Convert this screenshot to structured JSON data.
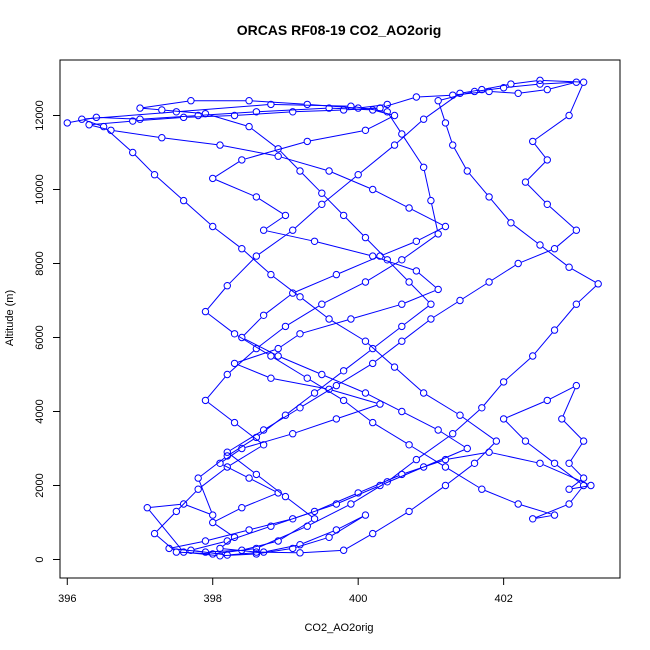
{
  "chart_data": {
    "type": "line",
    "title": "ORCAS RF08-19 CO2_AO2orig",
    "xlabel": "CO2_AO2orig",
    "ylabel": "Altitude (m)",
    "xlim": [
      395.9,
      403.6
    ],
    "ylim": [
      -500,
      13500
    ],
    "xticks": [
      396,
      398,
      400,
      402
    ],
    "yticks": [
      0,
      2000,
      4000,
      6000,
      8000,
      10000,
      12000
    ],
    "marker": "open-circle",
    "grid": false,
    "legend": "none",
    "series": [
      {
        "color": "#0000ff",
        "points": [
          [
            396.0,
            11800
          ],
          [
            396.4,
            11950
          ],
          [
            397.0,
            11900
          ],
          [
            397.8,
            12000
          ],
          [
            398.6,
            12100
          ],
          [
            399.6,
            12200
          ],
          [
            400.2,
            12150
          ],
          [
            400.5,
            12000
          ],
          [
            400.1,
            11600
          ],
          [
            399.3,
            11300
          ],
          [
            398.4,
            10800
          ],
          [
            398.0,
            10300
          ],
          [
            398.6,
            9800
          ],
          [
            399.0,
            9300
          ],
          [
            398.7,
            8900
          ],
          [
            399.4,
            8600
          ],
          [
            400.2,
            8200
          ],
          [
            400.8,
            7800
          ],
          [
            401.1,
            7300
          ],
          [
            400.6,
            6900
          ],
          [
            399.9,
            6500
          ],
          [
            399.2,
            6100
          ],
          [
            398.9,
            5700
          ],
          [
            398.3,
            5300
          ],
          [
            398.8,
            4900
          ],
          [
            399.6,
            4600
          ],
          [
            400.3,
            4200
          ],
          [
            399.7,
            3800
          ],
          [
            399.1,
            3400
          ],
          [
            398.4,
            3000
          ],
          [
            398.1,
            2600
          ],
          [
            398.5,
            2200
          ],
          [
            398.9,
            1800
          ],
          [
            398.4,
            1400
          ],
          [
            398.0,
            1000
          ],
          [
            398.3,
            600
          ],
          [
            398.1,
            300
          ],
          [
            398.6,
            200
          ],
          [
            399.2,
            180
          ],
          [
            399.8,
            250
          ],
          [
            400.2,
            700
          ],
          [
            400.7,
            1300
          ],
          [
            401.2,
            2000
          ],
          [
            401.6,
            2600
          ],
          [
            401.9,
            3200
          ],
          [
            401.4,
            3900
          ],
          [
            400.9,
            4500
          ],
          [
            400.5,
            5200
          ],
          [
            400.1,
            5900
          ],
          [
            399.6,
            6500
          ],
          [
            399.2,
            7100
          ],
          [
            398.8,
            7700
          ],
          [
            398.4,
            8400
          ],
          [
            398.0,
            9000
          ],
          [
            397.6,
            9700
          ],
          [
            397.2,
            10400
          ],
          [
            396.9,
            11000
          ],
          [
            396.5,
            11700
          ],
          [
            396.2,
            11900
          ],
          [
            397.5,
            12100
          ],
          [
            398.8,
            12300
          ],
          [
            399.9,
            12250
          ],
          [
            400.4,
            12100
          ],
          [
            400.6,
            11500
          ],
          [
            400.9,
            10600
          ],
          [
            401.0,
            9700
          ],
          [
            401.1,
            8800
          ],
          [
            400.6,
            8100
          ],
          [
            400.1,
            7500
          ],
          [
            399.5,
            6900
          ],
          [
            399.0,
            6300
          ],
          [
            398.6,
            5700
          ],
          [
            398.2,
            5000
          ],
          [
            397.9,
            4300
          ],
          [
            398.3,
            3700
          ],
          [
            398.7,
            3100
          ],
          [
            398.2,
            2500
          ],
          [
            397.8,
            1900
          ],
          [
            397.5,
            1300
          ],
          [
            397.2,
            700
          ],
          [
            397.5,
            200
          ],
          [
            398.0,
            150
          ],
          [
            398.6,
            300
          ],
          [
            399.3,
            900
          ],
          [
            399.9,
            1500
          ],
          [
            400.4,
            2100
          ],
          [
            400.8,
            2700
          ],
          [
            401.3,
            3400
          ],
          [
            401.7,
            4100
          ],
          [
            402.0,
            4800
          ],
          [
            402.4,
            5500
          ],
          [
            402.7,
            6200
          ],
          [
            403.0,
            6900
          ],
          [
            403.3,
            7450
          ],
          [
            402.9,
            7900
          ],
          [
            402.5,
            8500
          ],
          [
            402.1,
            9100
          ],
          [
            401.8,
            9800
          ],
          [
            401.5,
            10500
          ],
          [
            401.3,
            11200
          ],
          [
            401.2,
            11800
          ],
          [
            401.1,
            12400
          ],
          [
            401.6,
            12650
          ],
          [
            402.0,
            12750
          ],
          [
            402.5,
            12850
          ],
          [
            403.0,
            12900
          ],
          [
            402.6,
            12700
          ],
          [
            402.2,
            12600
          ],
          [
            401.8,
            12650
          ],
          [
            401.3,
            12550
          ],
          [
            400.8,
            12500
          ],
          [
            400.3,
            12200
          ],
          [
            399.8,
            12150
          ],
          [
            399.1,
            12100
          ],
          [
            398.3,
            12000
          ],
          [
            397.6,
            11950
          ],
          [
            396.9,
            11850
          ],
          [
            396.3,
            11750
          ],
          [
            396.6,
            11600
          ],
          [
            397.3,
            11400
          ],
          [
            398.1,
            11200
          ],
          [
            398.9,
            10900
          ],
          [
            399.6,
            10500
          ],
          [
            400.2,
            10000
          ],
          [
            400.7,
            9500
          ],
          [
            401.2,
            9000
          ],
          [
            400.8,
            8600
          ],
          [
            400.3,
            8200
          ],
          [
            399.7,
            7700
          ],
          [
            399.1,
            7200
          ],
          [
            398.7,
            6600
          ],
          [
            398.4,
            6000
          ],
          [
            398.9,
            5500
          ],
          [
            399.5,
            5000
          ],
          [
            400.1,
            4500
          ],
          [
            400.6,
            4000
          ],
          [
            401.1,
            3500
          ],
          [
            401.5,
            3000
          ],
          [
            400.9,
            2500
          ],
          [
            400.3,
            2000
          ],
          [
            399.7,
            1500
          ],
          [
            399.1,
            1100
          ],
          [
            398.5,
            800
          ],
          [
            397.9,
            500
          ],
          [
            397.4,
            300
          ],
          [
            397.9,
            200
          ],
          [
            398.4,
            250
          ],
          [
            398.9,
            500
          ],
          [
            399.4,
            1100
          ],
          [
            399.0,
            1700
          ],
          [
            398.6,
            2300
          ],
          [
            398.2,
            2900
          ],
          [
            398.7,
            3500
          ],
          [
            399.2,
            4100
          ],
          [
            399.7,
            4700
          ],
          [
            400.2,
            5300
          ],
          [
            400.6,
            5900
          ],
          [
            401.0,
            6500
          ],
          [
            401.4,
            7000
          ],
          [
            401.8,
            7500
          ],
          [
            402.2,
            8000
          ],
          [
            402.7,
            8400
          ],
          [
            403.0,
            8900
          ],
          [
            402.6,
            9600
          ],
          [
            402.3,
            10200
          ],
          [
            402.6,
            10800
          ],
          [
            402.4,
            11300
          ],
          [
            402.9,
            12000
          ],
          [
            403.1,
            12900
          ],
          [
            402.5,
            12950
          ],
          [
            402.1,
            12850
          ],
          [
            401.7,
            12700
          ],
          [
            401.4,
            12600
          ],
          [
            400.9,
            11900
          ],
          [
            400.5,
            11200
          ],
          [
            400.0,
            10400
          ],
          [
            399.5,
            9600
          ],
          [
            399.1,
            8900
          ],
          [
            398.6,
            8200
          ],
          [
            398.2,
            7400
          ],
          [
            397.9,
            6700
          ],
          [
            398.3,
            6100
          ],
          [
            398.8,
            5500
          ],
          [
            399.3,
            4900
          ],
          [
            399.8,
            4300
          ],
          [
            400.2,
            3700
          ],
          [
            400.7,
            3100
          ],
          [
            401.2,
            2500
          ],
          [
            401.7,
            1900
          ],
          [
            402.2,
            1500
          ],
          [
            402.7,
            1200
          ],
          [
            402.4,
            1100
          ],
          [
            402.9,
            1500
          ],
          [
            403.1,
            2000
          ],
          [
            402.7,
            2600
          ],
          [
            402.3,
            3200
          ],
          [
            402.0,
            3800
          ],
          [
            402.6,
            4300
          ],
          [
            403.0,
            4700
          ],
          [
            402.8,
            3800
          ],
          [
            403.1,
            3200
          ],
          [
            402.9,
            2600
          ],
          [
            403.1,
            2200
          ],
          [
            402.9,
            1900
          ],
          [
            403.2,
            2000
          ],
          [
            402.5,
            2600
          ],
          [
            401.8,
            2900
          ],
          [
            401.2,
            2700
          ],
          [
            400.6,
            2300
          ],
          [
            400.0,
            1800
          ],
          [
            399.4,
            1300
          ],
          [
            398.8,
            900
          ],
          [
            398.2,
            500
          ],
          [
            397.7,
            250
          ],
          [
            398.2,
            120
          ],
          [
            398.7,
            200
          ],
          [
            399.2,
            400
          ],
          [
            399.7,
            800
          ],
          [
            400.1,
            1200
          ],
          [
            399.6,
            600
          ],
          [
            399.1,
            300
          ],
          [
            398.6,
            150
          ],
          [
            398.1,
            100
          ],
          [
            397.6,
            200
          ],
          [
            397.1,
            1400
          ],
          [
            397.6,
            1500
          ],
          [
            398.0,
            1200
          ],
          [
            397.8,
            2200
          ],
          [
            398.2,
            2800
          ],
          [
            398.6,
            3300
          ],
          [
            399.0,
            3900
          ],
          [
            399.4,
            4500
          ],
          [
            399.8,
            5100
          ],
          [
            400.2,
            5700
          ],
          [
            400.6,
            6300
          ],
          [
            401.0,
            6900
          ],
          [
            400.7,
            7500
          ],
          [
            400.4,
            8100
          ],
          [
            400.1,
            8700
          ],
          [
            399.8,
            9300
          ],
          [
            399.5,
            9900
          ],
          [
            399.2,
            10500
          ],
          [
            398.9,
            11100
          ],
          [
            398.5,
            11700
          ],
          [
            397.9,
            12050
          ],
          [
            397.3,
            12150
          ],
          [
            397.0,
            12200
          ],
          [
            397.7,
            12400
          ],
          [
            398.5,
            12400
          ],
          [
            399.3,
            12300
          ],
          [
            400.0,
            12200
          ],
          [
            400.4,
            12300
          ]
        ]
      }
    ]
  }
}
